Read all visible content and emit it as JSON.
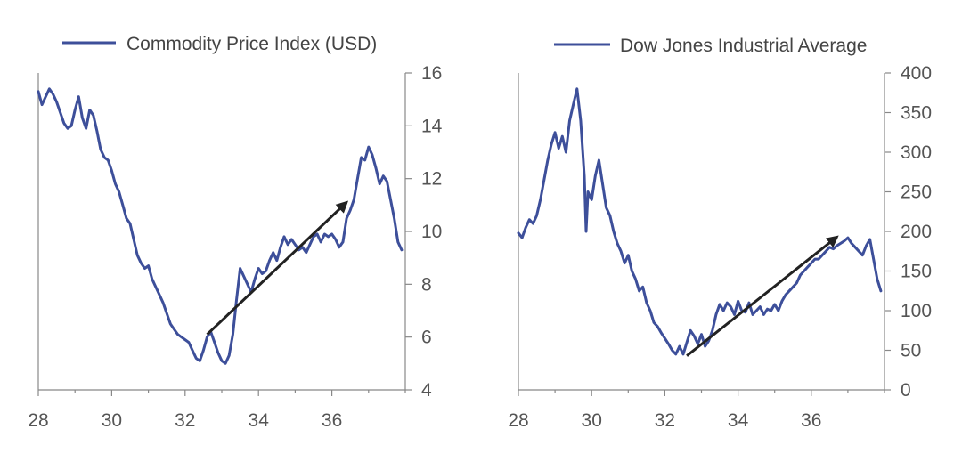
{
  "colors": {
    "series": "#3d4f9a",
    "arrow": "#222222",
    "axis": "#888888"
  },
  "chart_data": [
    {
      "type": "line",
      "title": "",
      "xlabel": "",
      "ylabel": "",
      "legend_position": "top",
      "grid": false,
      "y_axis_side": "right",
      "xlim": [
        28,
        38
      ],
      "ylim": [
        4,
        16
      ],
      "x_ticks": [
        28,
        30,
        32,
        34,
        36
      ],
      "y_ticks": [
        4,
        6,
        8,
        10,
        12,
        14,
        16
      ],
      "series": [
        {
          "name": "Commodity Price Index (USD)",
          "x": [
            28.0,
            28.1,
            28.2,
            28.3,
            28.4,
            28.5,
            28.6,
            28.7,
            28.8,
            28.9,
            29.0,
            29.1,
            29.2,
            29.3,
            29.4,
            29.5,
            29.6,
            29.7,
            29.8,
            29.9,
            30.0,
            30.1,
            30.2,
            30.3,
            30.4,
            30.5,
            30.6,
            30.7,
            30.8,
            30.9,
            31.0,
            31.1,
            31.2,
            31.3,
            31.4,
            31.5,
            31.6,
            31.7,
            31.8,
            31.9,
            32.0,
            32.1,
            32.2,
            32.3,
            32.4,
            32.5,
            32.6,
            32.7,
            32.8,
            32.9,
            33.0,
            33.1,
            33.2,
            33.3,
            33.4,
            33.5,
            33.6,
            33.7,
            33.8,
            33.9,
            34.0,
            34.1,
            34.2,
            34.3,
            34.4,
            34.5,
            34.6,
            34.7,
            34.8,
            34.9,
            35.0,
            35.1,
            35.2,
            35.3,
            35.4,
            35.5,
            35.6,
            35.7,
            35.8,
            35.9,
            36.0,
            36.1,
            36.2,
            36.3,
            36.4,
            36.5,
            36.6,
            36.7,
            36.8,
            36.9,
            37.0,
            37.1,
            37.2,
            37.3,
            37.4,
            37.5,
            37.6,
            37.7,
            37.8,
            37.9
          ],
          "y": [
            15.3,
            14.8,
            15.1,
            15.4,
            15.2,
            14.9,
            14.5,
            14.1,
            13.9,
            14.0,
            14.6,
            15.1,
            14.3,
            13.9,
            14.6,
            14.4,
            13.8,
            13.1,
            12.8,
            12.7,
            12.3,
            11.8,
            11.5,
            11.0,
            10.5,
            10.3,
            9.7,
            9.1,
            8.8,
            8.6,
            8.7,
            8.2,
            7.9,
            7.6,
            7.3,
            6.9,
            6.5,
            6.3,
            6.1,
            6.0,
            5.9,
            5.8,
            5.5,
            5.2,
            5.1,
            5.5,
            6.0,
            6.2,
            5.8,
            5.4,
            5.1,
            5.0,
            5.3,
            6.1,
            7.4,
            8.6,
            8.3,
            8.0,
            7.7,
            8.2,
            8.6,
            8.4,
            8.5,
            8.9,
            9.2,
            8.9,
            9.4,
            9.8,
            9.5,
            9.7,
            9.5,
            9.3,
            9.4,
            9.2,
            9.5,
            9.8,
            9.9,
            9.6,
            9.9,
            9.8,
            9.9,
            9.7,
            9.4,
            9.6,
            10.5,
            10.8,
            11.2,
            12.0,
            12.8,
            12.7,
            13.2,
            12.9,
            12.4,
            11.8,
            12.1,
            11.9,
            11.2,
            10.5,
            9.6,
            9.3
          ]
        }
      ],
      "annotations": [
        {
          "type": "arrow",
          "from": [
            32.6,
            6.1
          ],
          "to": [
            36.4,
            11.1
          ]
        }
      ]
    },
    {
      "type": "line",
      "title": "",
      "xlabel": "",
      "ylabel": "",
      "legend_position": "top",
      "grid": false,
      "y_axis_side": "right",
      "xlim": [
        28,
        38
      ],
      "ylim": [
        0,
        400
      ],
      "x_ticks": [
        28,
        30,
        32,
        34,
        36
      ],
      "y_ticks": [
        0,
        50,
        100,
        150,
        200,
        250,
        300,
        350,
        400
      ],
      "series": [
        {
          "name": "Dow Jones Industrial Average",
          "x": [
            28.0,
            28.1,
            28.2,
            28.3,
            28.4,
            28.5,
            28.6,
            28.7,
            28.8,
            28.9,
            29.0,
            29.1,
            29.2,
            29.3,
            29.4,
            29.5,
            29.6,
            29.7,
            29.8,
            29.85,
            29.9,
            30.0,
            30.1,
            30.2,
            30.3,
            30.4,
            30.5,
            30.6,
            30.7,
            30.8,
            30.9,
            31.0,
            31.1,
            31.2,
            31.3,
            31.4,
            31.5,
            31.6,
            31.7,
            31.8,
            31.9,
            32.0,
            32.1,
            32.2,
            32.3,
            32.4,
            32.5,
            32.6,
            32.7,
            32.8,
            32.9,
            33.0,
            33.1,
            33.2,
            33.3,
            33.4,
            33.5,
            33.6,
            33.7,
            33.8,
            33.9,
            34.0,
            34.1,
            34.2,
            34.3,
            34.4,
            34.5,
            34.6,
            34.7,
            34.8,
            34.9,
            35.0,
            35.1,
            35.2,
            35.3,
            35.4,
            35.5,
            35.6,
            35.7,
            35.8,
            35.9,
            36.0,
            36.1,
            36.2,
            36.3,
            36.4,
            36.5,
            36.6,
            36.7,
            36.8,
            36.9,
            37.0,
            37.1,
            37.2,
            37.3,
            37.4,
            37.5,
            37.6,
            37.7,
            37.8,
            37.9
          ],
          "y": [
            198,
            192,
            205,
            215,
            210,
            220,
            240,
            265,
            290,
            310,
            325,
            305,
            320,
            300,
            340,
            360,
            380,
            340,
            270,
            200,
            250,
            240,
            270,
            290,
            260,
            230,
            220,
            200,
            185,
            175,
            160,
            170,
            150,
            140,
            125,
            130,
            110,
            100,
            85,
            80,
            72,
            65,
            58,
            50,
            45,
            55,
            45,
            60,
            75,
            68,
            58,
            70,
            55,
            62,
            75,
            95,
            108,
            100,
            110,
            105,
            95,
            112,
            100,
            98,
            110,
            95,
            100,
            105,
            95,
            102,
            100,
            108,
            100,
            112,
            120,
            125,
            130,
            135,
            145,
            150,
            155,
            160,
            165,
            165,
            170,
            175,
            180,
            178,
            182,
            185,
            188,
            192,
            185,
            180,
            175,
            170,
            182,
            190,
            165,
            140,
            125
          ]
        }
      ],
      "annotations": [
        {
          "type": "arrow",
          "from": [
            32.6,
            43
          ],
          "to": [
            36.7,
            193
          ]
        }
      ]
    }
  ]
}
